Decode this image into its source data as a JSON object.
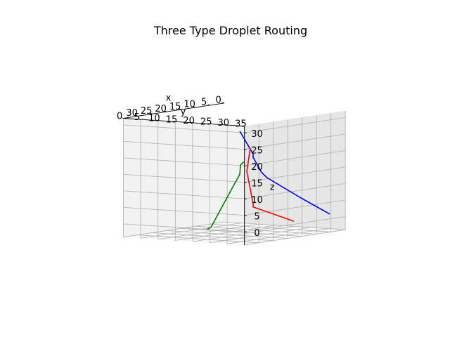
{
  "chart_data": {
    "type": "line",
    "projection": "3d",
    "title": "Three Type Droplet Routing",
    "xlabel": "x",
    "ylabel": "y",
    "zlabel": "z",
    "xlim": [
      0,
      35
    ],
    "ylim": [
      0,
      35
    ],
    "zlim": [
      -4,
      32
    ],
    "xticks": [
      "0",
      "5",
      "10",
      "15",
      "20",
      "25",
      "30"
    ],
    "yticks": [
      "0",
      "5",
      "10",
      "15",
      "20",
      "25",
      "30",
      "35"
    ],
    "zticks": [
      "0",
      "5",
      "10",
      "15",
      "20",
      "25",
      "30"
    ],
    "grid": true,
    "series": [
      {
        "color": "#0000ff",
        "points": [
          [
            3,
            33,
            1
          ],
          [
            11,
            31,
            7
          ],
          [
            20,
            29,
            14
          ],
          [
            22,
            29,
            16
          ],
          [
            26,
            30,
            21
          ],
          [
            26,
            30,
            22
          ],
          [
            33,
            32,
            30
          ]
        ]
      },
      {
        "color": "#ff0000",
        "points": [
          [
            13,
            31,
            0
          ],
          [
            26,
            30,
            6
          ],
          [
            26,
            30,
            7
          ],
          [
            33,
            34,
            18
          ],
          [
            33,
            35,
            25
          ]
        ]
      },
      {
        "color": "#008000",
        "points": [
          [
            30,
            20,
            -1
          ],
          [
            31,
            22,
            0
          ],
          [
            33,
            32,
            17
          ],
          [
            34,
            33,
            20
          ],
          [
            34,
            34,
            21
          ]
        ]
      }
    ]
  }
}
